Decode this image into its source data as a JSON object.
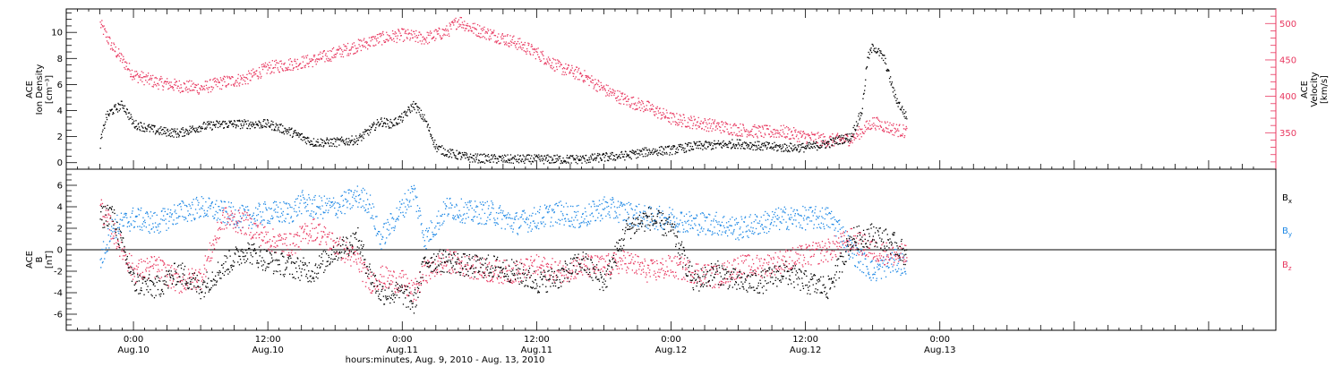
{
  "xaxis": {
    "label": "hours:minutes, Aug.  9, 2010 - Aug. 13, 2010",
    "range_hours": [
      -6,
      102
    ],
    "ticks": [
      {
        "hours": 0,
        "time": "0:00",
        "date": "Aug.10"
      },
      {
        "hours": 12,
        "time": "12:00",
        "date": "Aug.10"
      },
      {
        "hours": 24,
        "time": "0:00",
        "date": "Aug.11"
      },
      {
        "hours": 36,
        "time": "12:00",
        "date": "Aug.11"
      },
      {
        "hours": 48,
        "time": "0:00",
        "date": "Aug.12"
      },
      {
        "hours": 60,
        "time": "12:00",
        "date": "Aug.12"
      },
      {
        "hours": 72,
        "time": "0:00",
        "date": "Aug.13"
      }
    ]
  },
  "colors": {
    "density": "#000000",
    "velocity": "#e8375f",
    "bx": "#000000",
    "by": "#1e88e5",
    "bz": "#e8375f"
  },
  "chart_data": [
    {
      "type": "scatter",
      "ylabel_left": [
        "ACE",
        "Ion Density",
        "[cm⁻³]"
      ],
      "ylabel_right": [
        "ACE",
        "Velocity",
        "[km/s]"
      ],
      "ylim_left": [
        -0.5,
        11.8
      ],
      "ylim_right": [
        300,
        520
      ],
      "left_ticks": [
        "0",
        "2",
        "4",
        "6",
        "8",
        "10"
      ],
      "right_ticks": [
        "350",
        "400",
        "450",
        "500"
      ],
      "series": [
        {
          "axis": "left",
          "x": [
            -3,
            -2.5,
            -2,
            -1,
            0,
            2,
            4,
            6,
            8,
            10,
            12,
            14,
            16,
            18,
            20,
            21,
            22,
            23,
            24,
            25,
            26,
            27,
            28,
            30,
            33,
            36,
            40,
            44,
            46,
            48,
            50,
            52,
            54,
            56,
            58,
            60,
            62,
            63,
            64,
            65,
            65.5,
            66,
            67,
            68,
            69
          ],
          "y": [
            1.5,
            3.5,
            4,
            4.5,
            3,
            2.5,
            2.3,
            2.8,
            3,
            3,
            3,
            2.4,
            1.6,
            1.6,
            1.8,
            2.5,
            3.2,
            3,
            3.5,
            4.5,
            3.3,
            1.2,
            0.8,
            0.4,
            0.3,
            0.3,
            0.3,
            0.6,
            0.9,
            1,
            1.3,
            1.4,
            1.5,
            1.3,
            1.2,
            1.2,
            1.5,
            1.8,
            2,
            4,
            8,
            9,
            8,
            5,
            3.5
          ]
        },
        {
          "axis": "right",
          "x": [
            -3,
            -2,
            0,
            2,
            4,
            6,
            8,
            10,
            12,
            14,
            16,
            18,
            20,
            22,
            24,
            26,
            28,
            29,
            30,
            32,
            34,
            36,
            38,
            40,
            42,
            44,
            46,
            48,
            50,
            52,
            54,
            56,
            58,
            60,
            62,
            64,
            66,
            68,
            69
          ],
          "y": [
            500,
            470,
            430,
            420,
            415,
            412,
            420,
            425,
            440,
            445,
            450,
            460,
            470,
            480,
            485,
            480,
            490,
            505,
            495,
            485,
            475,
            460,
            440,
            430,
            410,
            395,
            385,
            370,
            365,
            360,
            355,
            352,
            352,
            345,
            340,
            342,
            365,
            355,
            352
          ]
        }
      ]
    },
    {
      "type": "scatter",
      "ylabel": [
        "ACE",
        "B",
        "[nT]"
      ],
      "ylim": [
        -7.5,
        7.5
      ],
      "ticks": [
        "-6",
        "-4",
        "-2",
        "0",
        "2",
        "4",
        "6"
      ],
      "series": [
        {
          "name": "Bx",
          "x": [
            -3,
            -2,
            0,
            2,
            4,
            6,
            8,
            10,
            12,
            14,
            16,
            18,
            20,
            21,
            22,
            24,
            25,
            26,
            28,
            30,
            32,
            34,
            36,
            38,
            40,
            42,
            44,
            46,
            48,
            50,
            52,
            54,
            56,
            58,
            60,
            62,
            63,
            64,
            66,
            68,
            69
          ],
          "y": [
            3,
            3.5,
            -3,
            -3.5,
            -2,
            -3.5,
            -1.5,
            0,
            -1,
            -1.5,
            -2,
            0,
            1,
            -2,
            -4,
            -4,
            -5,
            -1,
            -1,
            -1.5,
            -1.5,
            -2,
            -3,
            -2.5,
            -1,
            -3,
            2,
            3,
            2,
            -3,
            -2,
            -3,
            -3,
            -2,
            -3,
            -3.5,
            -1.5,
            1,
            1.5,
            0.5,
            -0.5
          ]
        },
        {
          "name": "By",
          "x": [
            -3,
            -2,
            0,
            2,
            4,
            6,
            8,
            10,
            12,
            14,
            15,
            16,
            18,
            20,
            21,
            22,
            24,
            25,
            26,
            28,
            30,
            32,
            34,
            36,
            38,
            40,
            42,
            44,
            46,
            48,
            50,
            52,
            54,
            56,
            58,
            60,
            62,
            63,
            64,
            66,
            68,
            69
          ],
          "y": [
            -1,
            2,
            3,
            2.5,
            3.5,
            4,
            3.5,
            3,
            3.5,
            3.5,
            4.5,
            4,
            4,
            5,
            4.5,
            1,
            4,
            5.5,
            1,
            4,
            3.5,
            3.5,
            2.5,
            3,
            3.5,
            3,
            4,
            3.5,
            3,
            3,
            2.5,
            2.5,
            2,
            2.5,
            3,
            3,
            3,
            2,
            0,
            -2,
            -1,
            -1.5
          ]
        },
        {
          "name": "Bz",
          "x": [
            -3,
            -2,
            0,
            2,
            4,
            6,
            8,
            10,
            12,
            14,
            16,
            18,
            20,
            21,
            22,
            24,
            25,
            26,
            28,
            30,
            32,
            34,
            36,
            38,
            40,
            42,
            44,
            46,
            48,
            50,
            52,
            54,
            56,
            58,
            60,
            62,
            63,
            64,
            66,
            68,
            69
          ],
          "y": [
            4,
            2,
            -2,
            -1.5,
            -3,
            -2.5,
            3,
            2.5,
            1,
            0.5,
            2,
            0.5,
            -1,
            -3,
            -2.5,
            -3,
            -4,
            -2,
            -1,
            -1.5,
            -2,
            -2,
            -1.5,
            -2,
            -1.5,
            -1.5,
            -1,
            -2,
            -1.5,
            -2,
            -2.5,
            -1.5,
            -1.5,
            -1,
            -0.5,
            0,
            0.5,
            1,
            0,
            -0.5,
            -0.5
          ]
        }
      ]
    }
  ],
  "legend": {
    "bx": {
      "main": "B",
      "sub": "x"
    },
    "by": {
      "main": "B",
      "sub": "y"
    },
    "bz": {
      "main": "B",
      "sub": "z"
    }
  }
}
